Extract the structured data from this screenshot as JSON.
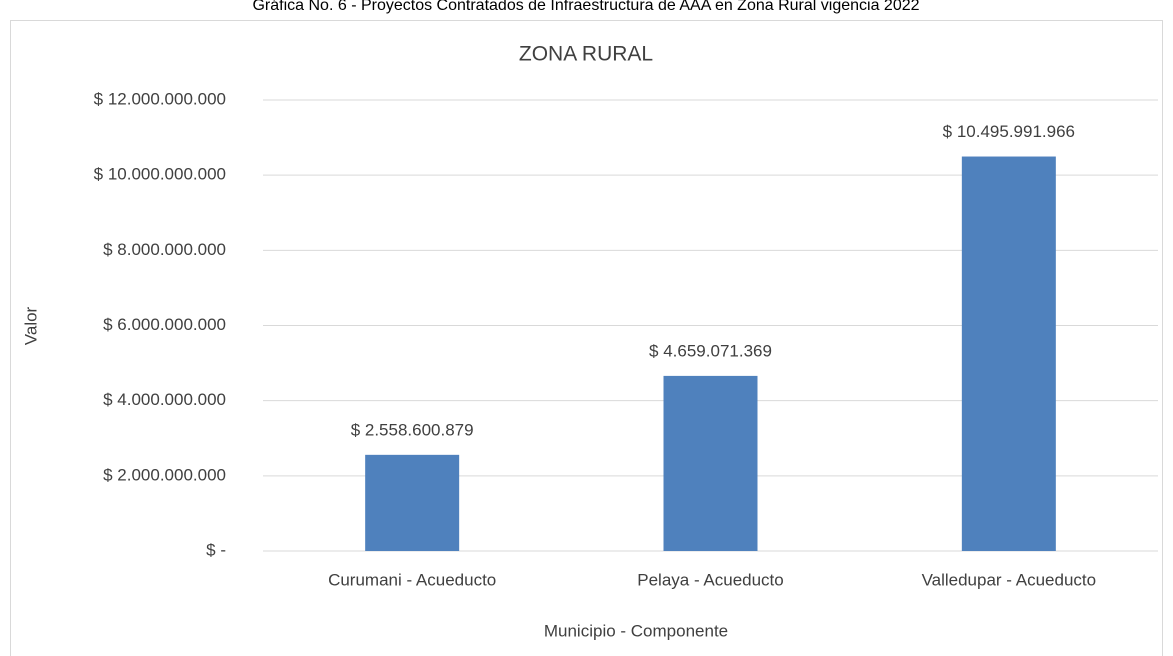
{
  "chart_data": {
    "type": "bar",
    "caption": "Gráfica No. 6 - Proyectos Contratados de Infraestructura de AAA en Zona Rural vigencia 2022",
    "title": "ZONA RURAL",
    "x_label": "Municipio - Componente",
    "y_label": "Valor",
    "categories": [
      "Curumani - Acueducto",
      "Pelaya - Acueducto",
      "Valledupar - Acueducto"
    ],
    "values": [
      2558600879,
      4659071369,
      10495991966
    ],
    "value_labels": [
      "$ 2.558.600.879",
      "$ 4.659.071.369",
      "$ 10.495.991.966"
    ],
    "color": "#4f81bd",
    "ylim": [
      0,
      12000000000
    ],
    "yticks": [
      {
        "value": 0,
        "label": "$ -"
      },
      {
        "value": 2000000000,
        "label": "$ 2.000.000.000"
      },
      {
        "value": 4000000000,
        "label": "$ 4.000.000.000"
      },
      {
        "value": 6000000000,
        "label": "$ 6.000.000.000"
      },
      {
        "value": 8000000000,
        "label": "$ 8.000.000.000"
      },
      {
        "value": 10000000000,
        "label": "$ 10.000.000.000"
      },
      {
        "value": 12000000000,
        "label": "$ 12.000.000.000"
      }
    ],
    "grid": true
  }
}
